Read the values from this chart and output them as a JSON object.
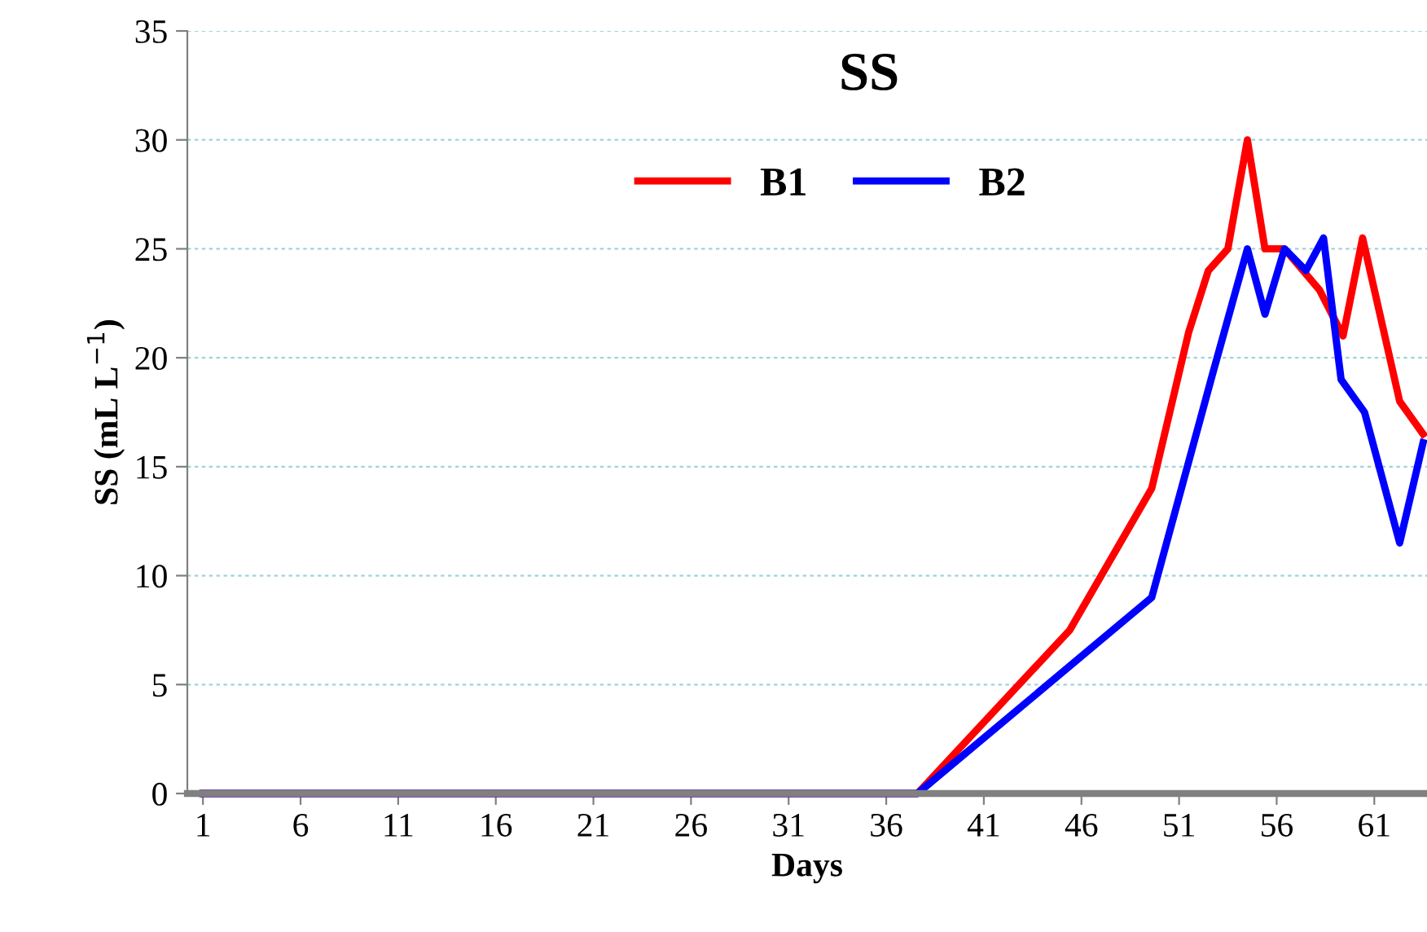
{
  "chart_data": {
    "type": "line",
    "title": "SS",
    "xlabel": "Days",
    "ylabel": "SS (mL L$^{−1}$)",
    "series": [
      {
        "name": "B1",
        "color": "#ff0000",
        "x": [
          1,
          37.6,
          45.4,
          49.6,
          51.5,
          52.5,
          53.5,
          54.5,
          55.4,
          56.4,
          58.2,
          59.4,
          60.4,
          62.3,
          63.5
        ],
        "values": [
          0,
          0,
          7.5,
          14,
          21.2,
          24,
          25,
          30,
          25,
          25,
          23.1,
          21,
          25.5,
          18,
          16.5
        ]
      },
      {
        "name": "B2",
        "color": "#0000ff",
        "x": [
          1,
          37.6,
          49.6,
          52.7,
          54.5,
          55.4,
          56.4,
          57.5,
          58.4,
          59.3,
          60.5,
          62.3,
          63.5
        ],
        "values": [
          0,
          0,
          9,
          19.2,
          25,
          22,
          25,
          24,
          25.5,
          19,
          17.5,
          11.5,
          16.1
        ]
      }
    ],
    "xlim": [
      0.2,
      63.7
    ],
    "xticks": [
      1,
      6,
      11,
      16,
      21,
      26,
      31,
      36,
      41,
      46,
      51,
      56,
      61
    ],
    "ylim": [
      0,
      35
    ],
    "yticks": [
      0,
      5,
      10,
      15,
      20,
      25,
      30,
      35
    ],
    "grid": "y",
    "legend": "top",
    "line_style": "solid",
    "marker": "none"
  }
}
